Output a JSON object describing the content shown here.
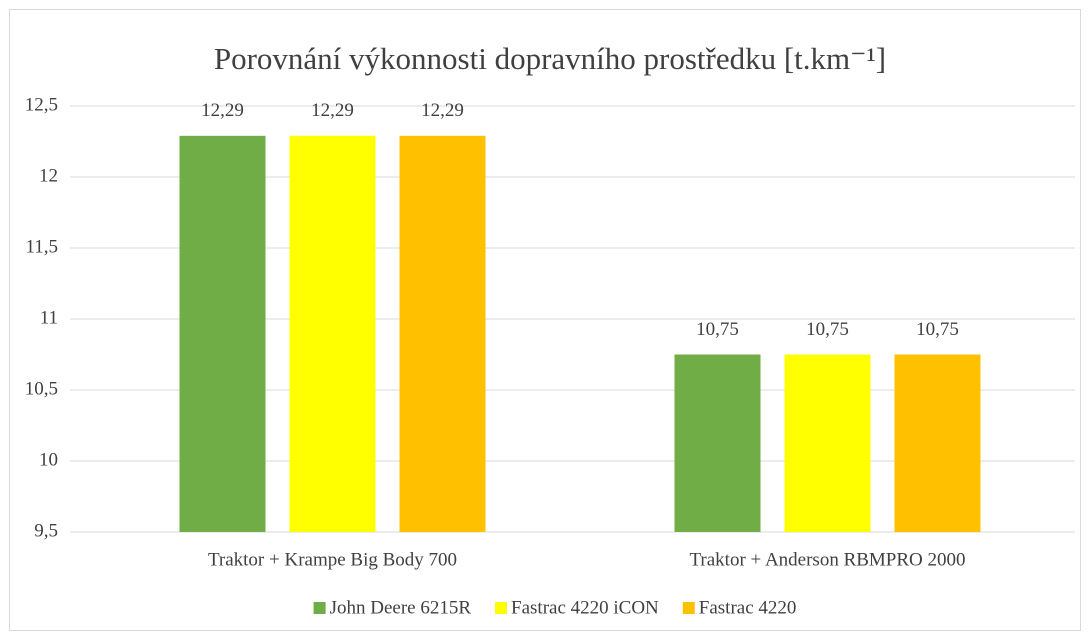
{
  "chart_data": {
    "type": "bar",
    "title": "Porovnání výkonnosti dopravního prostředku [t.km⁻¹]",
    "categories": [
      "Traktor + Krampe Big Body 700",
      "Traktor + Anderson RBMPRO 2000"
    ],
    "series": [
      {
        "name": "John Deere 6215R",
        "color": "#70ad47",
        "values": [
          12.29,
          10.75
        ],
        "value_labels": [
          "12,29",
          "10,75"
        ]
      },
      {
        "name": "Fastrac 4220 iCON",
        "color": "#ffff00",
        "values": [
          12.29,
          10.75
        ],
        "value_labels": [
          "12,29",
          "10,75"
        ]
      },
      {
        "name": "Fastrac 4220",
        "color": "#ffc000",
        "values": [
          12.29,
          10.75
        ],
        "value_labels": [
          "12,29",
          "10,75"
        ]
      }
    ],
    "ylim": [
      9.5,
      12.5
    ],
    "yticks": [
      {
        "value": 9.5,
        "label": "9,5"
      },
      10,
      {
        "value": 10.5,
        "label": "10,5"
      },
      11,
      {
        "value": 11.5,
        "label": "11,5"
      },
      12,
      {
        "value": 12.5,
        "label": "12,5"
      }
    ],
    "grid": true,
    "legend": "bottom"
  }
}
